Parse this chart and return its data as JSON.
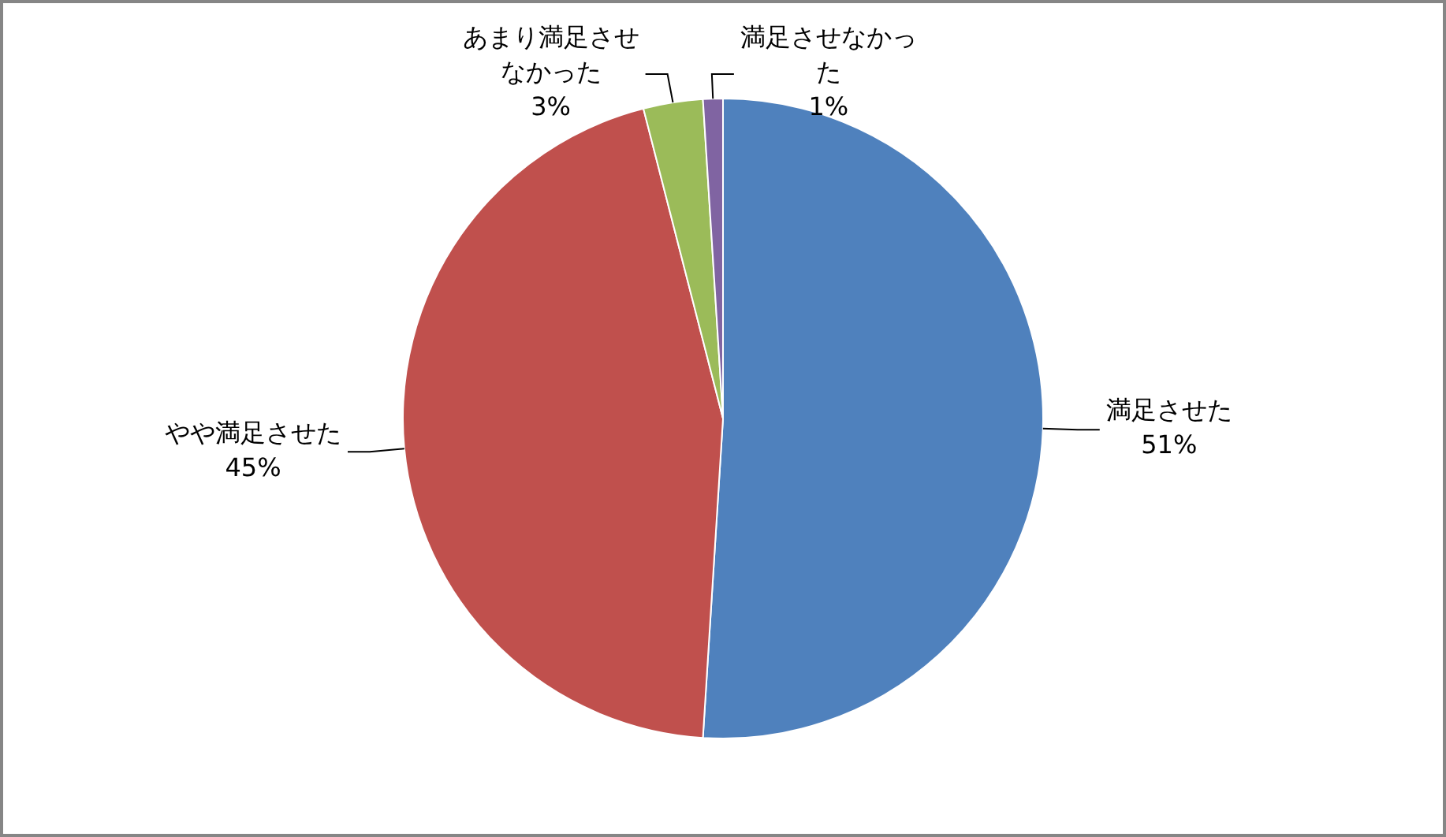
{
  "chart_data": {
    "type": "pie",
    "categories": [
      "満足させた",
      "やや満足させた",
      "あまり満足させなかった",
      "満足させなかった"
    ],
    "values": [
      51,
      45,
      3,
      1
    ],
    "colors": [
      "#4f81bd",
      "#c0504d",
      "#9bbb59",
      "#8064a2"
    ],
    "value_labels": [
      "51%",
      "45%",
      "3%",
      "1%"
    ],
    "legend": false
  }
}
